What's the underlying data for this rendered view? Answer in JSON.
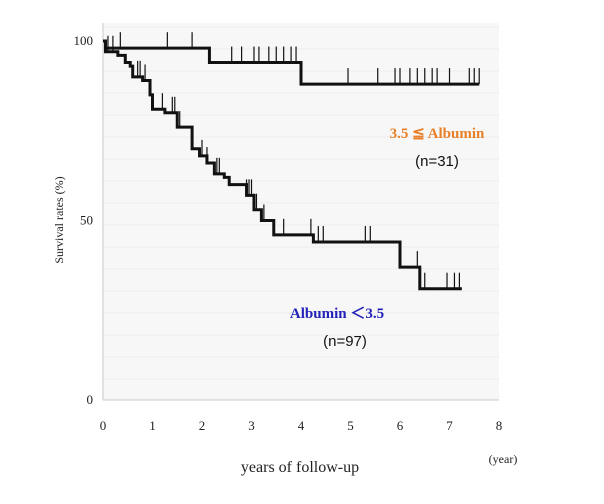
{
  "chart_data": {
    "type": "line",
    "subtype": "kaplan-meier step",
    "ylabel": "Survival rates (%)",
    "xlabel": "years of follow-up",
    "x_unit": "(year)",
    "xlim": [
      0,
      8
    ],
    "ylim": [
      0,
      100
    ],
    "x_ticks": [
      "0",
      "1",
      "2",
      "3",
      "4",
      "5",
      "6",
      "7",
      "8"
    ],
    "y_ticks": [
      "0",
      "50",
      "100"
    ],
    "grid": false,
    "series": [
      {
        "group": "high-albumin",
        "label": "3.5 ≦ Albumin",
        "n_label": "(n=31)",
        "label_color": "#e8802a",
        "steps": [
          [
            0,
            100
          ],
          [
            0.05,
            98
          ],
          [
            2.15,
            98
          ],
          [
            2.15,
            94
          ],
          [
            4.0,
            94
          ],
          [
            4.0,
            88
          ],
          [
            7.6,
            88
          ]
        ],
        "censor_x": [
          0.35,
          1.3,
          1.8,
          2.6,
          2.8,
          3.05,
          3.15,
          3.35,
          3.5,
          3.65,
          3.8,
          3.9,
          4.95,
          5.55,
          5.9,
          6.0,
          6.2,
          6.35,
          6.5,
          6.65,
          6.75,
          7.0,
          7.4,
          7.5,
          7.6
        ]
      },
      {
        "group": "low-albumin",
        "label": "Albumin ＜3.5",
        "n_label": "(n=97)",
        "label_color": "#2222bb",
        "steps": [
          [
            0,
            100
          ],
          [
            0.05,
            97
          ],
          [
            0.3,
            96
          ],
          [
            0.45,
            94
          ],
          [
            0.55,
            93
          ],
          [
            0.6,
            90
          ],
          [
            0.8,
            89
          ],
          [
            0.95,
            85
          ],
          [
            1.0,
            81
          ],
          [
            1.25,
            80
          ],
          [
            1.5,
            76
          ],
          [
            1.8,
            70
          ],
          [
            1.95,
            68
          ],
          [
            2.1,
            66
          ],
          [
            2.25,
            63
          ],
          [
            2.45,
            62
          ],
          [
            2.55,
            60
          ],
          [
            2.9,
            57
          ],
          [
            3.05,
            53
          ],
          [
            3.2,
            50
          ],
          [
            3.45,
            46
          ],
          [
            4.25,
            44
          ],
          [
            6.0,
            37
          ],
          [
            6.4,
            31
          ],
          [
            7.25,
            31
          ]
        ],
        "censor_x": [
          0.1,
          0.2,
          0.7,
          0.75,
          0.85,
          1.2,
          1.4,
          1.45,
          1.55,
          2.0,
          2.1,
          2.3,
          2.35,
          2.9,
          2.95,
          3.0,
          3.05,
          3.1,
          3.25,
          3.65,
          4.2,
          4.35,
          4.45,
          5.3,
          5.4,
          6.35,
          6.5,
          6.95,
          7.1,
          7.2
        ]
      }
    ]
  }
}
